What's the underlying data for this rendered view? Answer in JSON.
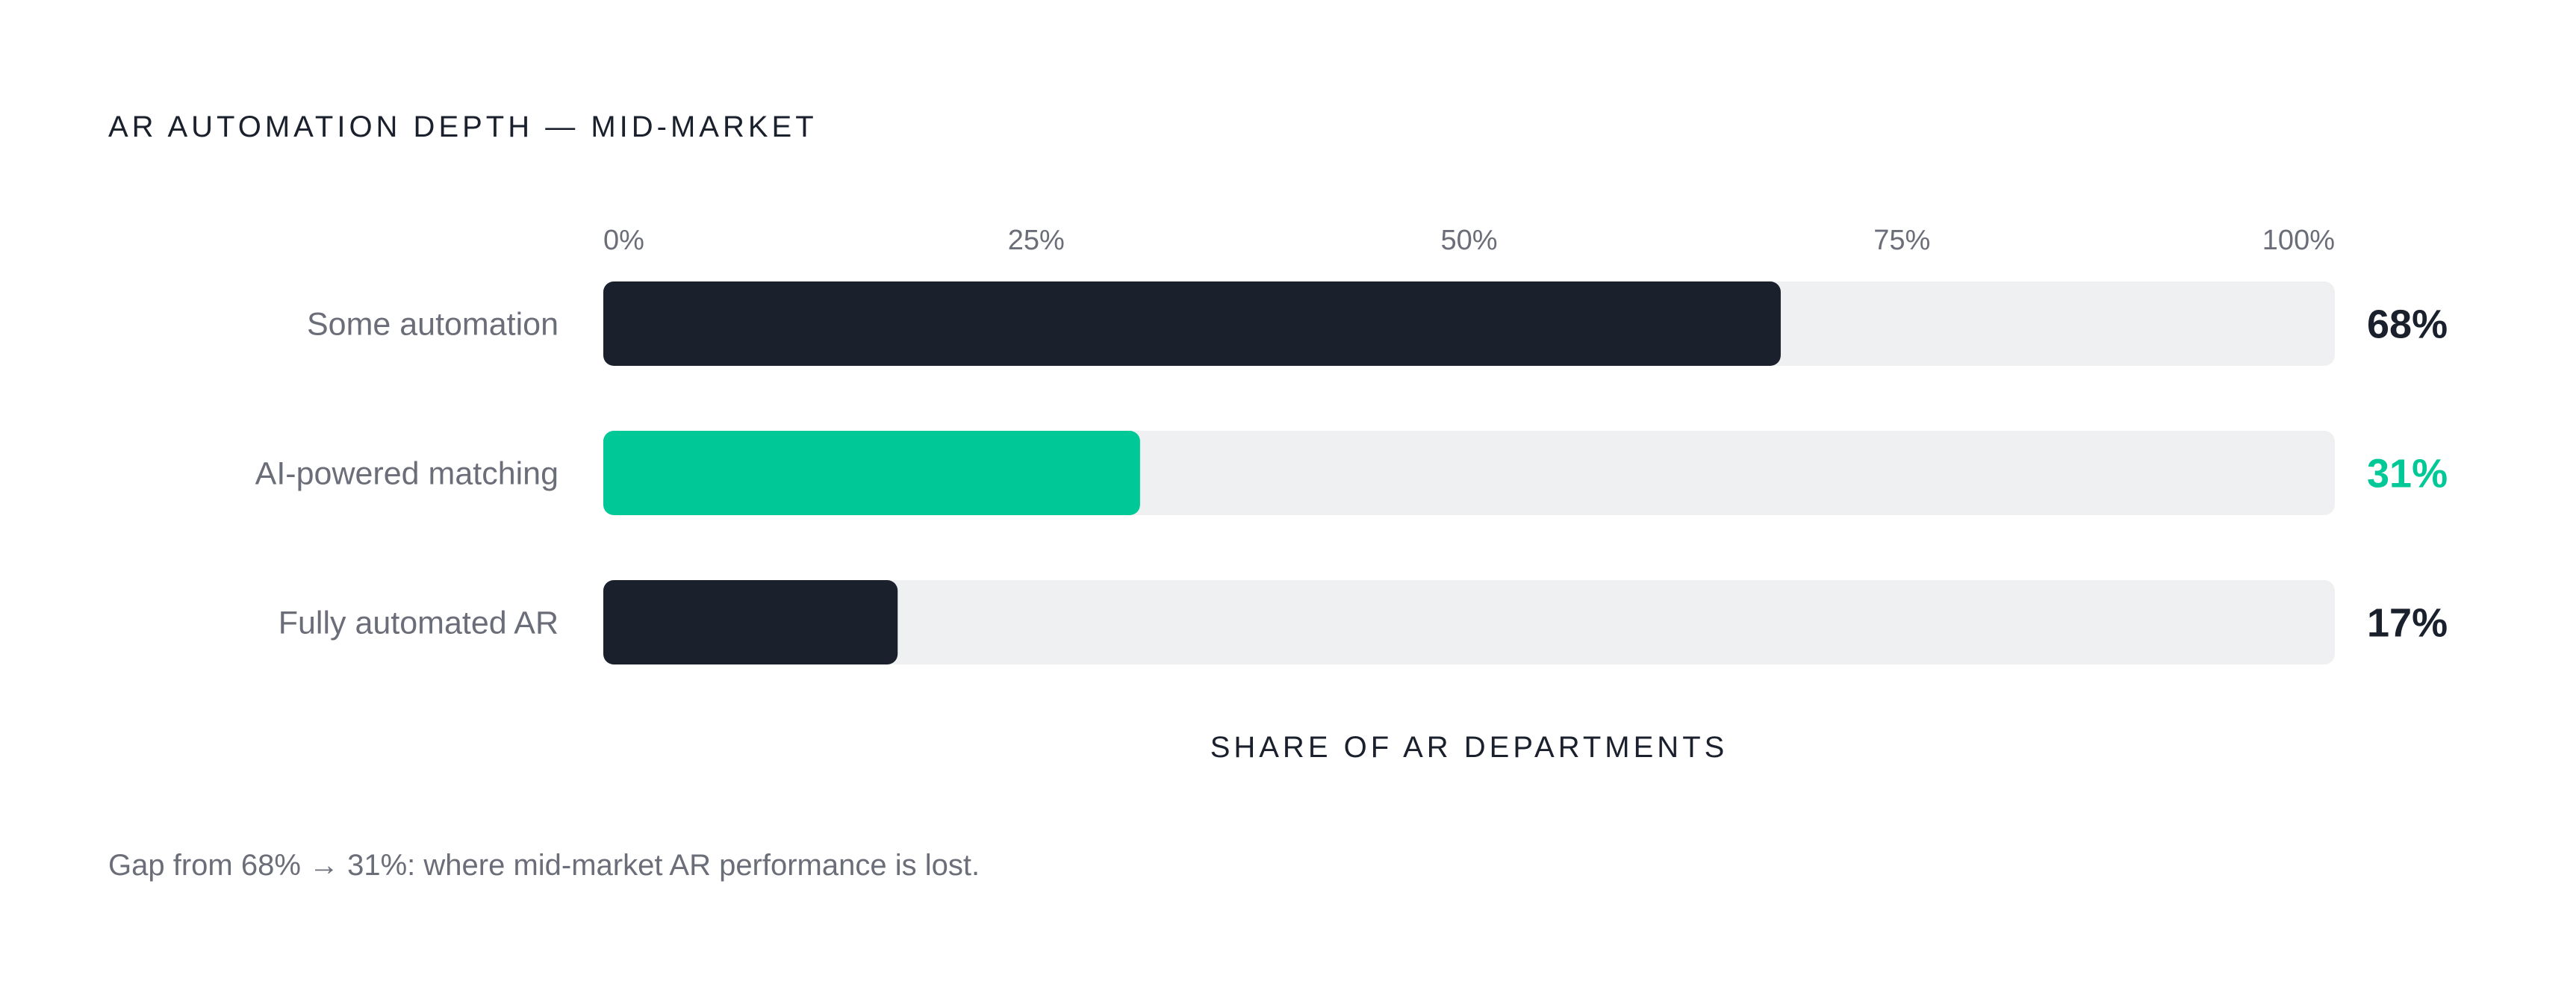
{
  "chart_data": {
    "type": "bar",
    "orientation": "horizontal",
    "title": "AR AUTOMATION DEPTH — MID-MARKET",
    "xlabel": "SHARE OF AR DEPARTMENTS",
    "ylabel": "",
    "xlim": [
      0,
      100
    ],
    "tick_labels": [
      "0%",
      "25%",
      "50%",
      "75%",
      "100%"
    ],
    "categories": [
      "Some automation",
      "AI-powered matching",
      "Fully automated AR"
    ],
    "values": [
      68,
      31,
      17
    ],
    "value_labels": [
      "68%",
      "31%",
      "17%"
    ],
    "bar_colors": [
      "#1b202d",
      "#00c896",
      "#1b202d"
    ],
    "track_color": "#eff0f1",
    "grid": false,
    "legend": "none"
  },
  "footnote": "Gap from 68% → 31%: where mid-market AR performance is lost."
}
